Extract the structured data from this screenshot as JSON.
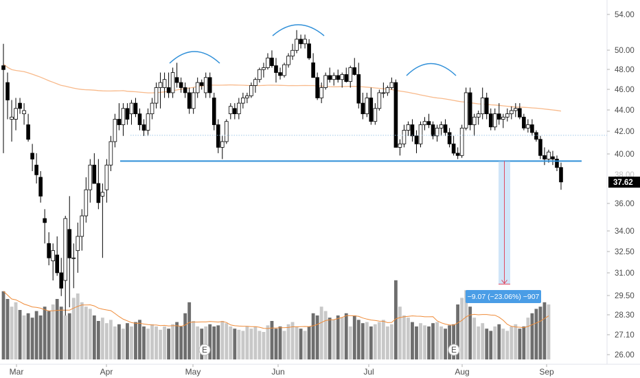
{
  "colors": {
    "up_fill": "#ffffff",
    "candle_line": "#000000",
    "down_fill": "#000000",
    "vol_up": "#c8c8c8",
    "vol_down": "#6e6e6e",
    "ma_line": "#f8b98a",
    "vol_ma_line": "#ef8b38",
    "neckline": "#2f8fd8",
    "arc": "#2f8fd8",
    "measure_fill": "#a9d0f2",
    "measure_arrow": "#e0475f",
    "measure_label_bg": "#4a9de6",
    "price_tag_bg": "#000000",
    "dotted_line": "#9fc7e8"
  },
  "price_axis": {
    "ticks": [
      "54.00",
      "50.00",
      "48.00",
      "46.00",
      "44.00",
      "42.00",
      "40.00",
      "36.00",
      "34.00",
      "32.50",
      "31.00",
      "29.50",
      "28.30",
      "27.10",
      "26.00"
    ],
    "last_price_label": "37.62",
    "faint_label": "38.00",
    "scale": "log"
  },
  "time_axis": {
    "labels": [
      "Mar",
      "Apr",
      "May",
      "Jun",
      "Jul",
      "Aug",
      "Sep"
    ]
  },
  "event_markers": [
    "E",
    "E"
  ],
  "measure": {
    "label": "−9.07 (−23.06%) −907",
    "from_price": 39.33,
    "to_price": 30.26
  },
  "chart_data": {
    "type": "candlestick",
    "price_scale": "log",
    "x": [
      "Feb-27",
      "Feb-28",
      "Mar-01",
      "Mar-04",
      "Mar-05",
      "Mar-06",
      "Mar-07",
      "Mar-08",
      "Mar-11",
      "Mar-12",
      "Mar-13",
      "Mar-14",
      "Mar-15",
      "Mar-18",
      "Mar-19",
      "Mar-20",
      "Mar-21",
      "Mar-22",
      "Mar-25",
      "Mar-26",
      "Mar-27",
      "Mar-28",
      "Mar-29",
      "Apr-01",
      "Apr-02",
      "Apr-03",
      "Apr-04",
      "Apr-05",
      "Apr-08",
      "Apr-09",
      "Apr-10",
      "Apr-11",
      "Apr-12",
      "Apr-15",
      "Apr-16",
      "Apr-17",
      "Apr-18",
      "Apr-22",
      "Apr-23",
      "Apr-24",
      "Apr-25",
      "Apr-26",
      "Apr-29",
      "Apr-30",
      "May-01",
      "May-02",
      "May-03",
      "May-06",
      "May-07",
      "May-08",
      "May-09",
      "May-10",
      "May-13",
      "May-14",
      "May-15",
      "May-16",
      "May-17",
      "May-20",
      "May-21",
      "May-22",
      "May-23",
      "May-24",
      "May-28",
      "May-29",
      "May-30",
      "May-31",
      "Jun-03",
      "Jun-04",
      "Jun-05",
      "Jun-06",
      "Jun-07",
      "Jun-10",
      "Jun-11",
      "Jun-12",
      "Jun-13",
      "Jun-14",
      "Jun-17",
      "Jun-18",
      "Jun-19",
      "Jun-20",
      "Jun-21",
      "Jun-24",
      "Jun-25",
      "Jun-26",
      "Jun-27",
      "Jun-28",
      "Jul-01",
      "Jul-02",
      "Jul-03",
      "Jul-05",
      "Jul-08",
      "Jul-09",
      "Jul-10",
      "Jul-11",
      "Jul-12",
      "Jul-15",
      "Jul-16",
      "Jul-17",
      "Jul-18",
      "Jul-19",
      "Jul-22",
      "Jul-23",
      "Jul-24",
      "Jul-25",
      "Jul-26",
      "Jul-29",
      "Jul-30",
      "Jul-31",
      "Aug-01",
      "Aug-02",
      "Aug-05",
      "Aug-06",
      "Aug-07",
      "Aug-08",
      "Aug-09",
      "Aug-12",
      "Aug-13",
      "Aug-14",
      "Aug-15",
      "Aug-16",
      "Aug-19",
      "Aug-20",
      "Aug-21",
      "Aug-22",
      "Aug-23",
      "Aug-26",
      "Aug-27",
      "Aug-28",
      "Aug-29",
      "Aug-30",
      "Sep-03",
      "Sep-04",
      "Sep-05"
    ],
    "ohlc": [
      [
        48.2,
        50.5,
        40.0,
        47.8
      ],
      [
        46.5,
        47.5,
        43.0,
        44.8
      ],
      [
        43.0,
        44.8,
        41.0,
        43.2
      ],
      [
        43.0,
        45.0,
        42.0,
        44.0
      ],
      [
        44.5,
        45.0,
        43.5,
        44.0
      ],
      [
        43.5,
        44.5,
        42.5,
        43.8
      ],
      [
        42.5,
        43.5,
        41.0,
        41.2
      ],
      [
        40.0,
        40.8,
        38.5,
        39.5
      ],
      [
        39.0,
        40.0,
        37.5,
        38.2
      ],
      [
        38.0,
        38.5,
        36.0,
        36.5
      ],
      [
        34.8,
        35.5,
        33.0,
        34.5
      ],
      [
        33.0,
        33.8,
        31.5,
        32.0
      ],
      [
        31.8,
        33.0,
        30.5,
        32.5
      ],
      [
        32.2,
        33.5,
        30.8,
        31.0
      ],
      [
        31.0,
        32.0,
        29.5,
        30.0
      ],
      [
        30.5,
        35.0,
        28.3,
        34.8
      ],
      [
        34.0,
        36.5,
        28.8,
        32.0
      ],
      [
        32.0,
        33.0,
        30.0,
        32.0
      ],
      [
        32.5,
        34.5,
        31.0,
        33.5
      ],
      [
        33.5,
        35.5,
        32.5,
        35.0
      ],
      [
        35.0,
        38.0,
        34.5,
        37.0
      ],
      [
        37.0,
        39.5,
        36.0,
        39.0
      ],
      [
        39.0,
        40.0,
        37.5,
        37.5
      ],
      [
        37.5,
        39.5,
        35.5,
        36.0
      ],
      [
        36.5,
        37.5,
        32.0,
        36.8
      ],
      [
        37.0,
        39.5,
        36.0,
        39.0
      ],
      [
        39.0,
        41.5,
        38.5,
        41.0
      ],
      [
        41.0,
        43.5,
        40.5,
        43.0
      ],
      [
        43.0,
        44.5,
        42.0,
        42.5
      ],
      [
        42.5,
        44.5,
        41.5,
        44.0
      ],
      [
        44.0,
        44.5,
        42.5,
        43.0
      ],
      [
        43.5,
        44.8,
        42.5,
        44.5
      ],
      [
        44.5,
        45.0,
        43.2,
        43.5
      ],
      [
        43.5,
        44.0,
        42.0,
        42.5
      ],
      [
        42.5,
        43.0,
        41.5,
        42.0
      ],
      [
        42.0,
        44.0,
        41.5,
        43.5
      ],
      [
        43.5,
        45.0,
        43.0,
        44.5
      ],
      [
        44.5,
        46.5,
        44.0,
        46.0
      ],
      [
        46.0,
        47.5,
        44.0,
        46.5
      ],
      [
        46.0,
        47.5,
        45.0,
        46.8
      ],
      [
        46.0,
        47.5,
        45.0,
        45.5
      ],
      [
        45.5,
        48.0,
        45.0,
        47.5
      ],
      [
        47.0,
        48.5,
        46.0,
        46.5
      ],
      [
        46.5,
        47.0,
        45.5,
        46.0
      ],
      [
        46.0,
        46.5,
        45.0,
        45.5
      ],
      [
        45.5,
        46.0,
        43.5,
        44.0
      ],
      [
        44.0,
        46.0,
        43.5,
        45.5
      ],
      [
        45.5,
        47.0,
        45.0,
        46.5
      ],
      [
        46.5,
        46.8,
        45.8,
        46.2
      ],
      [
        45.5,
        47.5,
        45.0,
        47.0
      ],
      [
        47.0,
        47.5,
        45.0,
        45.5
      ],
      [
        45.0,
        45.5,
        42.0,
        42.5
      ],
      [
        42.5,
        43.0,
        40.0,
        40.5
      ],
      [
        40.5,
        41.5,
        39.5,
        41.0
      ],
      [
        41.0,
        43.0,
        40.8,
        42.8
      ],
      [
        43.5,
        44.5,
        43.0,
        44.2
      ],
      [
        44.0,
        44.5,
        43.0,
        43.5
      ],
      [
        43.5,
        45.0,
        43.0,
        44.5
      ],
      [
        44.5,
        45.5,
        44.0,
        45.0
      ],
      [
        45.0,
        45.5,
        44.5,
        45.2
      ],
      [
        45.2,
        46.5,
        45.0,
        46.2
      ],
      [
        46.2,
        47.0,
        45.5,
        46.8
      ],
      [
        46.8,
        48.0,
        46.5,
        47.8
      ],
      [
        47.8,
        48.5,
        47.0,
        48.0
      ],
      [
        48.0,
        49.5,
        47.8,
        49.0
      ],
      [
        49.0,
        49.8,
        48.0,
        48.2
      ],
      [
        48.2,
        49.0,
        46.5,
        47.5
      ],
      [
        47.5,
        48.0,
        46.8,
        47.2
      ],
      [
        47.2,
        48.5,
        47.0,
        48.3
      ],
      [
        48.3,
        49.5,
        48.0,
        49.2
      ],
      [
        49.2,
        50.5,
        48.8,
        49.8
      ],
      [
        49.8,
        52.0,
        49.5,
        51.0
      ],
      [
        51.0,
        51.5,
        50.0,
        50.5
      ],
      [
        50.5,
        51.5,
        50.0,
        51.0
      ],
      [
        50.5,
        51.0,
        48.8,
        49.0
      ],
      [
        48.5,
        49.5,
        47.0,
        47.0
      ],
      [
        47.0,
        47.5,
        44.8,
        45.0
      ],
      [
        45.0,
        46.5,
        44.5,
        46.0
      ],
      [
        46.0,
        47.5,
        45.8,
        47.2
      ],
      [
        47.2,
        48.0,
        46.5,
        46.8
      ],
      [
        46.8,
        47.5,
        46.2,
        47.2
      ],
      [
        47.2,
        47.8,
        46.5,
        46.8
      ],
      [
        46.8,
        47.5,
        46.0,
        47.3
      ],
      [
        47.3,
        48.0,
        46.5,
        46.6
      ],
      [
        46.6,
        48.2,
        46.0,
        48.0
      ],
      [
        48.0,
        49.0,
        47.2,
        47.3
      ],
      [
        47.3,
        48.5,
        44.0,
        44.5
      ],
      [
        44.5,
        45.5,
        43.0,
        43.5
      ],
      [
        43.5,
        45.5,
        43.2,
        45.0
      ],
      [
        45.0,
        46.0,
        42.5,
        42.8
      ],
      [
        42.8,
        44.5,
        42.5,
        44.0
      ],
      [
        44.0,
        45.8,
        43.8,
        45.5
      ],
      [
        45.5,
        46.5,
        45.0,
        45.5
      ],
      [
        45.5,
        46.2,
        45.2,
        46.0
      ],
      [
        46.0,
        47.0,
        45.8,
        46.5
      ],
      [
        46.5,
        46.8,
        40.5,
        40.5
      ],
      [
        40.5,
        41.2,
        39.8,
        40.8
      ],
      [
        40.8,
        42.5,
        40.5,
        42.0
      ],
      [
        42.0,
        42.8,
        41.5,
        42.5
      ],
      [
        42.5,
        43.0,
        41.0,
        41.5
      ],
      [
        41.5,
        42.0,
        40.0,
        40.8
      ],
      [
        40.8,
        42.8,
        40.5,
        42.5
      ],
      [
        42.5,
        43.2,
        42.0,
        42.8
      ],
      [
        42.8,
        43.5,
        42.2,
        42.5
      ],
      [
        42.5,
        42.8,
        41.2,
        41.5
      ],
      [
        41.5,
        42.5,
        41.0,
        42.2
      ],
      [
        42.2,
        42.8,
        41.5,
        42.5
      ],
      [
        42.5,
        43.0,
        41.5,
        41.8
      ],
      [
        41.8,
        42.2,
        40.5,
        40.8
      ],
      [
        40.8,
        41.5,
        39.8,
        40.0
      ],
      [
        40.0,
        40.5,
        39.5,
        39.8
      ],
      [
        39.8,
        42.5,
        39.6,
        42.2
      ],
      [
        42.2,
        46.0,
        42.0,
        45.5
      ],
      [
        45.5,
        46.0,
        42.0,
        42.5
      ],
      [
        42.5,
        43.5,
        41.5,
        43.2
      ],
      [
        43.2,
        43.8,
        42.5,
        43.5
      ],
      [
        43.5,
        46.0,
        43.0,
        45.0
      ],
      [
        45.0,
        45.5,
        43.0,
        43.5
      ],
      [
        43.5,
        44.0,
        42.0,
        42.3
      ],
      [
        42.3,
        44.0,
        42.0,
        43.5
      ],
      [
        43.5,
        44.5,
        42.5,
        43.0
      ],
      [
        43.0,
        43.5,
        42.2,
        43.2
      ],
      [
        43.2,
        44.0,
        42.8,
        43.5
      ],
      [
        43.5,
        44.2,
        43.0,
        43.8
      ],
      [
        43.8,
        44.5,
        43.2,
        44.0
      ],
      [
        44.0,
        44.5,
        43.0,
        43.2
      ],
      [
        43.2,
        43.5,
        42.0,
        42.2
      ],
      [
        42.2,
        43.0,
        41.8,
        42.5
      ],
      [
        42.5,
        43.0,
        41.5,
        41.8
      ],
      [
        41.8,
        42.0,
        41.0,
        41.2
      ],
      [
        41.2,
        41.5,
        39.5,
        39.8
      ],
      [
        39.8,
        40.5,
        39.0,
        39.5
      ],
      [
        39.5,
        40.3,
        39.2,
        40.1
      ],
      [
        39.7,
        40.2,
        39.0,
        39.5
      ],
      [
        39.5,
        39.8,
        38.5,
        38.8
      ],
      [
        38.8,
        39.2,
        37.0,
        37.62
      ]
    ],
    "volume_relative": [
      0.62,
      0.55,
      0.48,
      0.52,
      0.45,
      0.4,
      0.42,
      0.38,
      0.44,
      0.4,
      0.48,
      0.44,
      0.5,
      0.55,
      0.48,
      0.4,
      0.42,
      0.56,
      0.6,
      0.52,
      0.48,
      0.46,
      0.4,
      0.35,
      0.38,
      0.33,
      0.36,
      0.3,
      0.32,
      0.28,
      0.33,
      0.3,
      0.34,
      0.36,
      0.3,
      0.28,
      0.32,
      0.3,
      0.27,
      0.3,
      0.28,
      0.32,
      0.34,
      0.3,
      0.42,
      0.52,
      0.35,
      0.3,
      0.28,
      0.3,
      0.32,
      0.3,
      0.31,
      0.35,
      0.33,
      0.3,
      0.28,
      0.27,
      0.26,
      0.3,
      0.28,
      0.3,
      0.26,
      0.25,
      0.31,
      0.35,
      0.28,
      0.3,
      0.26,
      0.32,
      0.34,
      0.3,
      0.28,
      0.26,
      0.3,
      0.42,
      0.4,
      0.48,
      0.44,
      0.38,
      0.36,
      0.4,
      0.38,
      0.42,
      0.3,
      0.4,
      0.36,
      0.33,
      0.34,
      0.3,
      0.32,
      0.34,
      0.36,
      0.3,
      0.32,
      0.72,
      0.48,
      0.4,
      0.38,
      0.34,
      0.3,
      0.33,
      0.31,
      0.3,
      0.33,
      0.34,
      0.3,
      0.28,
      0.31,
      0.32,
      0.5,
      0.56,
      0.63,
      0.48,
      0.38,
      0.3,
      0.33,
      0.28,
      0.26,
      0.3,
      0.32,
      0.28,
      0.26,
      0.3,
      0.32,
      0.28,
      0.3,
      0.38,
      0.42,
      0.46,
      0.48,
      0.52,
      0.5
    ],
    "moving_average": {
      "x_start": "Feb-27",
      "values_start": 48.5,
      "values_end": 44.2
    },
    "volume_moving_average_relative": 0.31,
    "neckline_price": 39.33,
    "dotted_level_price": 41.55,
    "arcs": [
      "left-shoulder",
      "head",
      "right-shoulder"
    ]
  }
}
